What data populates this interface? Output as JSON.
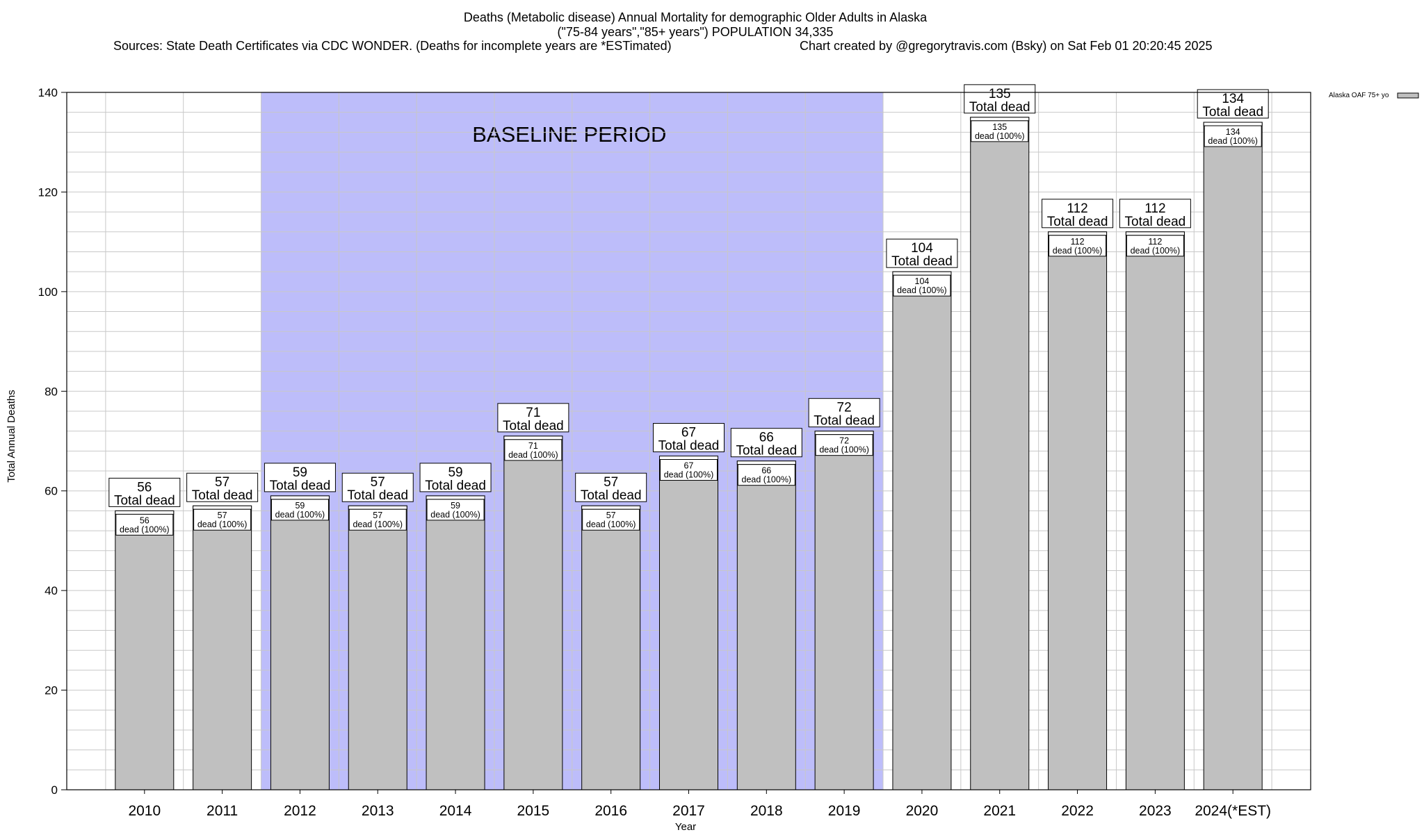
{
  "header": {
    "title_line1": "Deaths (Metabolic disease) Annual Mortality for demographic Older Adults in Alaska",
    "title_line2": "(\"75-84 years\",\"85+ years\") POPULATION 34,335",
    "sources": "Sources: State Death Certificates via CDC WONDER. (Deaths for incomplete years are *ESTimated)",
    "credit": "Chart created by @gregorytravis.com (Bsky) on Sat Feb 01 20:20:45 2025"
  },
  "chart_data": {
    "type": "bar",
    "categories": [
      "2010",
      "2011",
      "2012",
      "2013",
      "2014",
      "2015",
      "2016",
      "2017",
      "2018",
      "2019",
      "2020",
      "2021",
      "2022",
      "2023",
      "2024(*EST)"
    ],
    "series": [
      {
        "name": "Alaska OAF 75+ yo",
        "values": [
          56,
          57,
          59,
          57,
          59,
          71,
          57,
          67,
          66,
          72,
          104,
          135,
          112,
          112,
          134
        ]
      }
    ],
    "total_label_suffix": "Total dead",
    "inner_label_suffix": "dead (100%)",
    "xlabel": "Year",
    "ylabel": "Total Annual Deaths",
    "ylim": [
      0,
      140
    ],
    "yticks": [
      0,
      20,
      40,
      60,
      80,
      100,
      120,
      140
    ],
    "grid": true,
    "legend_position": "top-right",
    "baseline_period": {
      "label": "BASELINE PERIOD",
      "start": "2012",
      "end": "2019",
      "color": "#bdbdfa"
    },
    "colors": {
      "bar_fill": "#c0c0c0",
      "bar_stroke": "#000000",
      "grid": "#c8c8c8"
    }
  }
}
